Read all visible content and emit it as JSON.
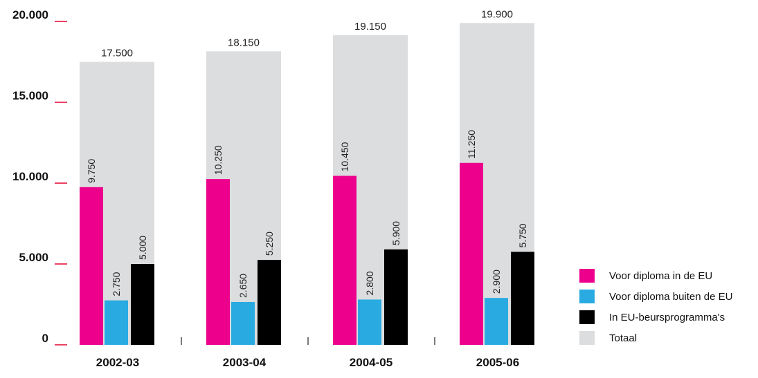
{
  "chart_data": {
    "type": "bar",
    "title": "",
    "xlabel": "",
    "ylabel": "",
    "ylim": [
      0,
      20000
    ],
    "yticks": [
      0,
      5000,
      10000,
      15000,
      20000
    ],
    "ytick_labels": [
      "0",
      "5.000",
      "10.000",
      "15.000",
      "20.000"
    ],
    "categories": [
      "2002-03",
      "2003-04",
      "2004-05",
      "2005-06"
    ],
    "grid": false,
    "legend_position": "bottom-right",
    "series": [
      {
        "name": "Voor diploma in de EU",
        "color": "#ec008c",
        "values": [
          9750,
          10250,
          10450,
          11250
        ],
        "labels": [
          "9.750",
          "10.250",
          "10.450",
          "11.250"
        ]
      },
      {
        "name": "Voor diploma buiten de EU",
        "color": "#29abe2",
        "values": [
          2750,
          2650,
          2800,
          2900
        ],
        "labels": [
          "2.750",
          "2.650",
          "2.800",
          "2.900"
        ]
      },
      {
        "name": "In EU-beursprogramma's",
        "color": "#000000",
        "values": [
          5000,
          5250,
          5900,
          5750
        ],
        "labels": [
          "5.000",
          "5.250",
          "5.900",
          "5.750"
        ]
      }
    ],
    "total": {
      "name": "Totaal",
      "color": "#dcdddf",
      "values": [
        17500,
        18150,
        19150,
        19900
      ],
      "labels": [
        "17.500",
        "18.150",
        "19.150",
        "19.900"
      ]
    },
    "tick_mark_color": "#e6002e"
  }
}
